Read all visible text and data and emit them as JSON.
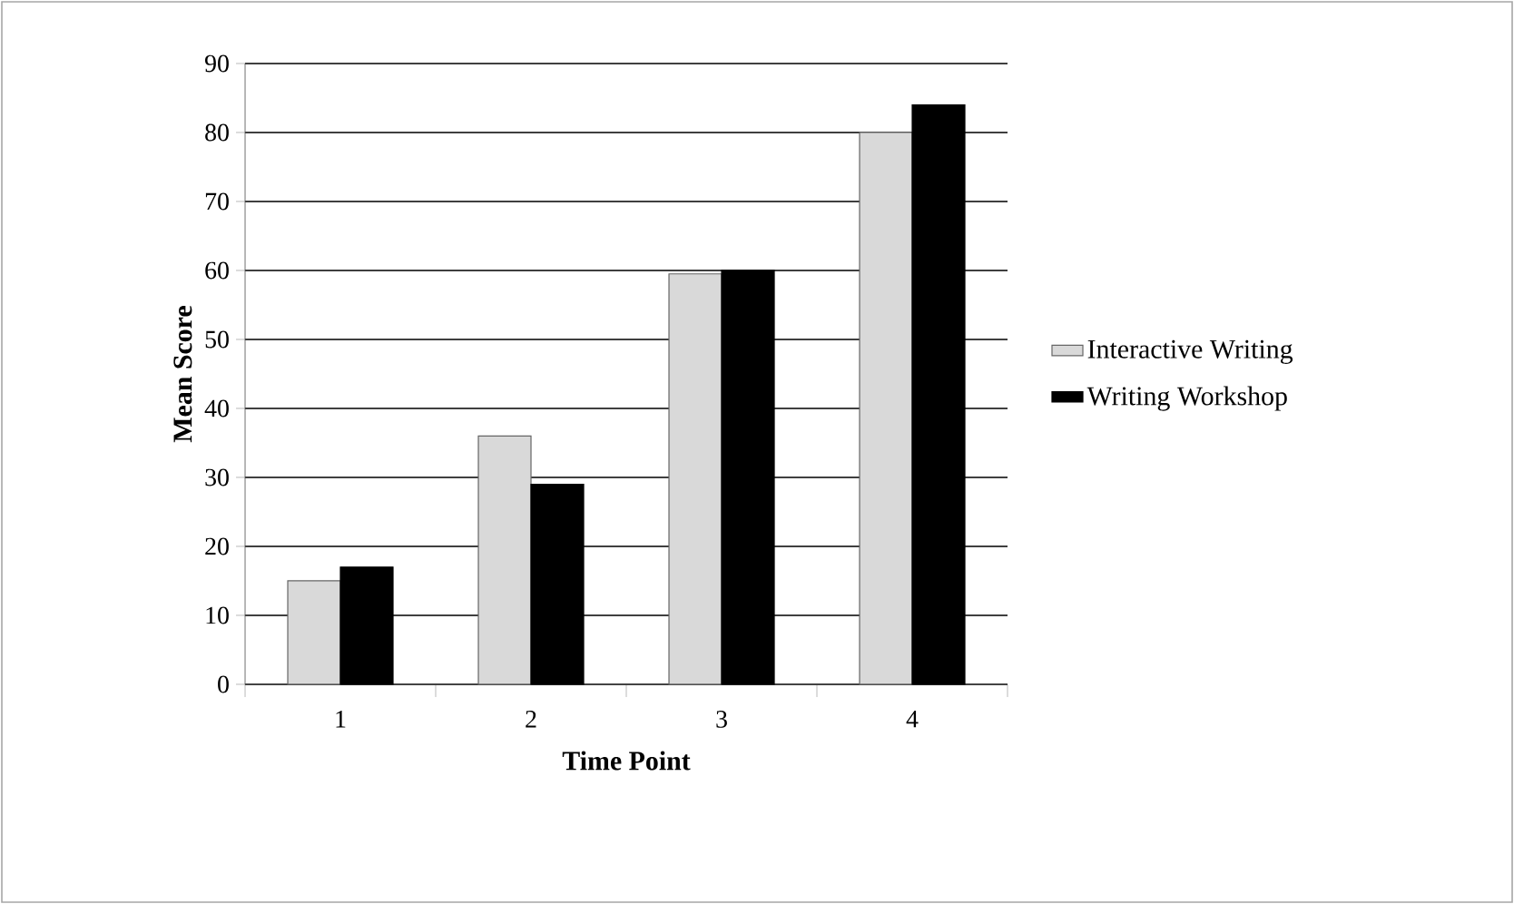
{
  "chart_data": {
    "type": "bar",
    "xlabel": "Time Point",
    "ylabel": "Mean Score",
    "categories": [
      "1",
      "2",
      "3",
      "4"
    ],
    "series": [
      {
        "name": "Interactive Writing",
        "color": "#d9d9d9",
        "values": [
          15,
          36,
          59.5,
          80
        ]
      },
      {
        "name": "Writing Workshop",
        "color": "#000000",
        "values": [
          17,
          29,
          60,
          84
        ]
      }
    ],
    "ylim": [
      0,
      90
    ],
    "yticks": [
      0,
      10,
      20,
      30,
      40,
      50,
      60,
      70,
      80,
      90
    ],
    "grid": "y",
    "legend": "right"
  }
}
